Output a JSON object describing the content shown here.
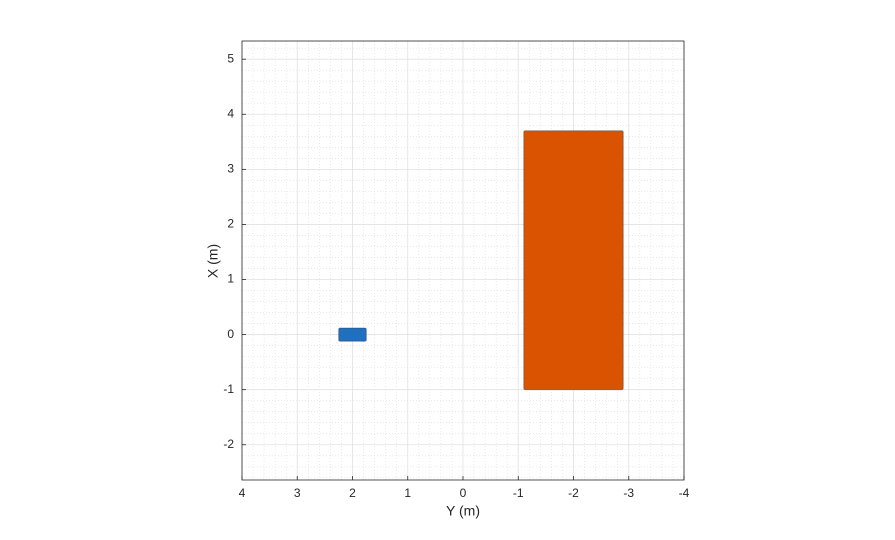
{
  "chart_data": {
    "type": "patch",
    "xlabel": "Y (m)",
    "ylabel": "X (m)",
    "xlim": [
      4,
      -4
    ],
    "xticks": [
      4,
      3,
      2,
      1,
      0,
      -1,
      -2,
      -3,
      -4
    ],
    "ylim": [
      -2.64,
      5.33
    ],
    "yticks": [
      -2,
      -1,
      0,
      1,
      2,
      3,
      4,
      5
    ],
    "grid": true,
    "minor_grid": true,
    "patches": [
      {
        "color": "#1f70bd",
        "x": [
          2.25,
          1.75
        ],
        "y": [
          -0.12,
          0.12
        ]
      },
      {
        "color": "#d95300",
        "x": [
          -1.1,
          -2.9
        ],
        "y": [
          -1,
          3.7
        ]
      }
    ]
  }
}
